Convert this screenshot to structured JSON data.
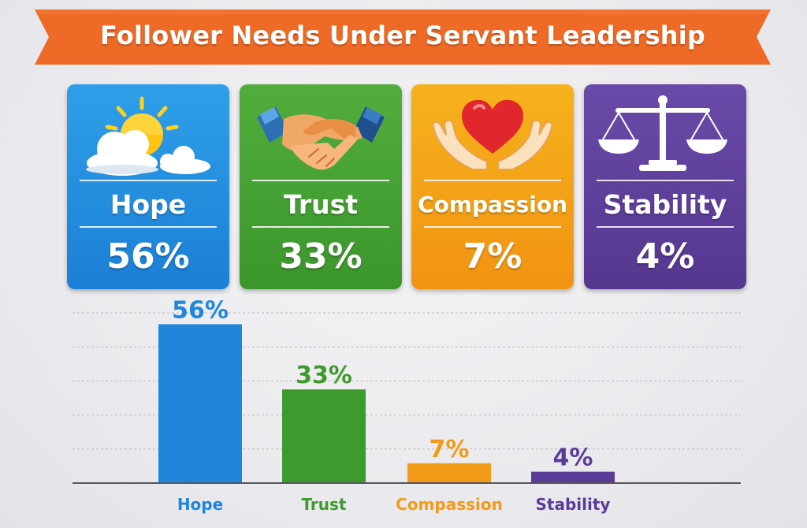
{
  "title": "Follower Needs Under Servant Leadership",
  "colors": {
    "banner": "#ef6a26",
    "hope": "#1f86dc",
    "trust": "#3f9a2e",
    "compassion": "#f39a19",
    "stability": "#5b3b98"
  },
  "cards": [
    {
      "label": "Hope",
      "value": "56%",
      "icon": "sun-cloud-icon"
    },
    {
      "label": "Trust",
      "value": "33%",
      "icon": "handshake-icon"
    },
    {
      "label": "Compassion",
      "value": "7%",
      "icon": "heart-hands-icon"
    },
    {
      "label": "Stability",
      "value": "4%",
      "icon": "scales-icon"
    }
  ],
  "chart_data": {
    "type": "bar",
    "categories": [
      "Hope",
      "Trust",
      "Compassion",
      "Stability"
    ],
    "values": [
      56,
      33,
      7,
      4
    ],
    "data_labels": [
      "56%",
      "33%",
      "7%",
      "4%"
    ],
    "colors": [
      "#1f86dc",
      "#3f9a2e",
      "#f39a19",
      "#5b3b98"
    ],
    "ylim": [
      0,
      60
    ],
    "grid": true,
    "xlabel": "",
    "ylabel": ""
  }
}
